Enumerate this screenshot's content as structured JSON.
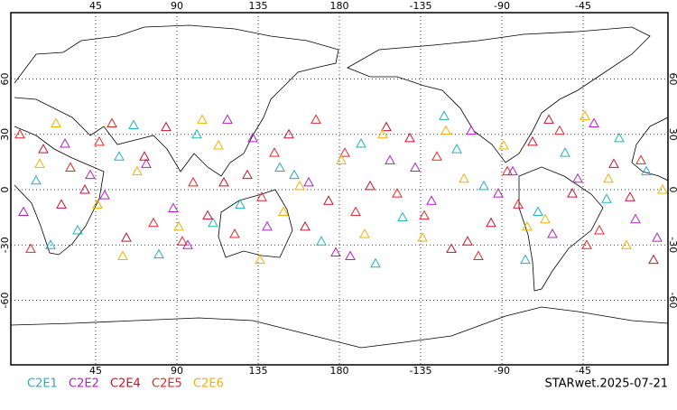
{
  "chart_data": {
    "type": "scatter",
    "xlim": [
      -2,
      362
    ],
    "ylim": [
      -95,
      96
    ],
    "xticks": [
      45,
      90,
      135,
      180,
      {
        "value": 225,
        "label": "-135"
      },
      {
        "value": 270,
        "label": "-90"
      },
      {
        "value": 315,
        "label": "-45"
      }
    ],
    "yticks": [
      -60,
      -30,
      0,
      30,
      60
    ],
    "grid": true,
    "annotation": "STARwet.2025-07-21",
    "series": [
      {
        "name": "C2E1",
        "color": "#1fb3bd",
        "x": [
          12,
          35,
          58,
          80,
          101,
          125,
          147,
          170,
          192,
          215,
          238,
          260,
          283,
          305,
          328,
          350,
          20,
          66,
          110,
          155,
          200,
          245,
          290,
          335
        ],
        "values": [
          5,
          -22,
          18,
          -35,
          30,
          -8,
          12,
          -28,
          25,
          -15,
          40,
          2,
          -38,
          20,
          -5,
          10,
          -30,
          35,
          -18,
          8,
          -40,
          22,
          -12,
          28
        ]
      },
      {
        "name": "C2E2",
        "color": "#b21fc4",
        "x": [
          5,
          28,
          50,
          73,
          96,
          118,
          140,
          163,
          186,
          208,
          231,
          253,
          276,
          298,
          321,
          344,
          42,
          88,
          132,
          178,
          222,
          268,
          312,
          356
        ],
        "values": [
          -12,
          25,
          -3,
          14,
          -30,
          38,
          -20,
          4,
          -36,
          16,
          -6,
          32,
          10,
          -24,
          36,
          -16,
          8,
          -10,
          28,
          -34,
          12,
          -2,
          6,
          -26
        ]
      },
      {
        "name": "C2E4",
        "color": "#c8102e",
        "x": [
          16,
          39,
          62,
          84,
          107,
          129,
          152,
          174,
          197,
          219,
          242,
          264,
          287,
          309,
          332,
          354,
          26,
          72,
          116,
          161,
          206,
          251,
          296,
          341
        ],
        "values": [
          22,
          0,
          -26,
          34,
          -14,
          8,
          30,
          -6,
          2,
          28,
          -32,
          -18,
          26,
          -2,
          14,
          -38,
          -8,
          18,
          4,
          -20,
          34,
          -28,
          38,
          -4
        ]
      },
      {
        "name": "C2E5",
        "color": "#e4262b",
        "x": [
          9,
          31,
          54,
          77,
          99,
          122,
          144,
          167,
          189,
          212,
          234,
          257,
          279,
          302,
          324,
          347,
          47,
          93,
          137,
          183,
          227,
          273,
          317,
          3
        ],
        "values": [
          -32,
          12,
          36,
          -18,
          4,
          -24,
          20,
          38,
          -12,
          -2,
          18,
          -36,
          -8,
          32,
          -22,
          16,
          26,
          -28,
          -4,
          20,
          -14,
          10,
          -30,
          30
        ]
      },
      {
        "name": "C2E6",
        "color": "#f2b100",
        "x": [
          23,
          46,
          68,
          91,
          113,
          136,
          158,
          181,
          204,
          226,
          249,
          271,
          294,
          316,
          339,
          359,
          14,
          60,
          104,
          149,
          194,
          239,
          284,
          329
        ],
        "values": [
          36,
          -8,
          10,
          -20,
          24,
          -38,
          2,
          16,
          30,
          -26,
          6,
          24,
          -16,
          40,
          -30,
          0,
          14,
          -36,
          38,
          -12,
          -24,
          32,
          -20,
          6
        ]
      }
    ]
  }
}
